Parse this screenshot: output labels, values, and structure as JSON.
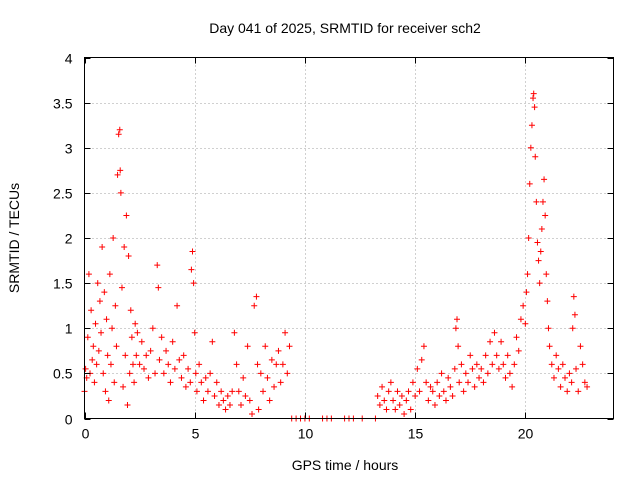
{
  "chart_data": {
    "type": "scatter",
    "title": "Day 041 of 2025, SRMTID for receiver sch2",
    "xlabel": "GPS time / hours",
    "ylabel": "SRMTID / TECUs",
    "xlim": [
      0,
      24
    ],
    "ylim": [
      0,
      4
    ],
    "xticks": [
      0,
      5,
      10,
      15,
      20
    ],
    "xtick_labels": [
      "0",
      "5",
      "10",
      "15",
      "20"
    ],
    "yticks": [
      0,
      0.5,
      1,
      1.5,
      2,
      2.5,
      3,
      3.5,
      4
    ],
    "ytick_labels": [
      "0",
      "0.5",
      "1",
      "1.5",
      "2",
      "2.5",
      "3",
      "3.5",
      "4"
    ],
    "grid": true,
    "marker": "+",
    "color": "#ff0000",
    "series": [
      {
        "name": "SRMTID",
        "points": [
          [
            0.0,
            0.3
          ],
          [
            0.05,
            0.55
          ],
          [
            0.1,
            0.45
          ],
          [
            0.15,
            0.9
          ],
          [
            0.2,
            1.6
          ],
          [
            0.25,
            0.5
          ],
          [
            0.3,
            1.2
          ],
          [
            0.35,
            0.65
          ],
          [
            0.4,
            0.8
          ],
          [
            0.45,
            0.4
          ],
          [
            0.5,
            1.05
          ],
          [
            0.55,
            0.6
          ],
          [
            0.6,
            1.5
          ],
          [
            0.65,
            0.75
          ],
          [
            0.7,
            1.3
          ],
          [
            0.75,
            0.95
          ],
          [
            0.8,
            1.9
          ],
          [
            0.85,
            0.5
          ],
          [
            0.9,
            1.4
          ],
          [
            0.95,
            0.3
          ],
          [
            1.0,
            1.1
          ],
          [
            1.05,
            0.7
          ],
          [
            1.1,
            0.2
          ],
          [
            1.15,
            1.6
          ],
          [
            1.2,
            0.6
          ],
          [
            1.25,
            1.0
          ],
          [
            1.3,
            2.0
          ],
          [
            1.35,
            0.4
          ],
          [
            1.4,
            1.25
          ],
          [
            1.45,
            0.8
          ],
          [
            1.5,
            2.7
          ],
          [
            1.55,
            3.15
          ],
          [
            1.6,
            3.2
          ],
          [
            1.62,
            2.75
          ],
          [
            1.65,
            2.5
          ],
          [
            1.7,
            1.45
          ],
          [
            1.75,
            0.35
          ],
          [
            1.8,
            1.9
          ],
          [
            1.85,
            0.7
          ],
          [
            1.9,
            2.25
          ],
          [
            1.95,
            0.15
          ],
          [
            2.0,
            1.8
          ],
          [
            2.05,
            0.5
          ],
          [
            2.1,
            1.2
          ],
          [
            2.15,
            0.9
          ],
          [
            2.2,
            0.6
          ],
          [
            2.25,
            0.4
          ],
          [
            2.3,
            1.05
          ],
          [
            2.35,
            0.7
          ],
          [
            2.4,
            0.95
          ],
          [
            2.5,
            0.6
          ],
          [
            2.6,
            0.85
          ],
          [
            2.7,
            0.55
          ],
          [
            2.8,
            0.7
          ],
          [
            2.9,
            0.45
          ],
          [
            3.0,
            0.75
          ],
          [
            3.1,
            1.0
          ],
          [
            3.2,
            0.5
          ],
          [
            3.3,
            1.7
          ],
          [
            3.35,
            1.45
          ],
          [
            3.4,
            0.65
          ],
          [
            3.5,
            0.9
          ],
          [
            3.6,
            0.5
          ],
          [
            3.7,
            0.75
          ],
          [
            3.8,
            0.6
          ],
          [
            3.9,
            0.4
          ],
          [
            4.0,
            0.85
          ],
          [
            4.1,
            0.55
          ],
          [
            4.2,
            1.25
          ],
          [
            4.3,
            0.65
          ],
          [
            4.4,
            0.45
          ],
          [
            4.5,
            0.7
          ],
          [
            4.6,
            0.35
          ],
          [
            4.7,
            0.55
          ],
          [
            4.8,
            0.4
          ],
          [
            4.85,
            1.65
          ],
          [
            4.9,
            1.85
          ],
          [
            4.95,
            1.5
          ],
          [
            5.0,
            0.95
          ],
          [
            5.05,
            0.5
          ],
          [
            5.1,
            0.3
          ],
          [
            5.2,
            0.6
          ],
          [
            5.3,
            0.4
          ],
          [
            5.4,
            0.2
          ],
          [
            5.5,
            0.45
          ],
          [
            5.6,
            0.3
          ],
          [
            5.7,
            0.5
          ],
          [
            5.8,
            0.85
          ],
          [
            5.9,
            0.25
          ],
          [
            6.0,
            0.4
          ],
          [
            6.1,
            0.15
          ],
          [
            6.2,
            0.3
          ],
          [
            6.3,
            0.2
          ],
          [
            6.4,
            0.1
          ],
          [
            6.5,
            0.25
          ],
          [
            6.6,
            0.15
          ],
          [
            6.7,
            0.3
          ],
          [
            6.8,
            0.95
          ],
          [
            6.9,
            0.6
          ],
          [
            7.0,
            0.3
          ],
          [
            7.1,
            0.15
          ],
          [
            7.2,
            0.45
          ],
          [
            7.3,
            0.25
          ],
          [
            7.4,
            0.8
          ],
          [
            7.5,
            0.2
          ],
          [
            7.6,
            0.05
          ],
          [
            7.7,
            1.25
          ],
          [
            7.8,
            1.35
          ],
          [
            7.85,
            0.6
          ],
          [
            7.9,
            0.1
          ],
          [
            8.0,
            0.5
          ],
          [
            8.1,
            0.3
          ],
          [
            8.2,
            0.8
          ],
          [
            8.3,
            0.45
          ],
          [
            8.4,
            0.2
          ],
          [
            8.5,
            0.65
          ],
          [
            8.6,
            0.35
          ],
          [
            8.7,
            0.6
          ],
          [
            8.8,
            0.75
          ],
          [
            8.9,
            0.4
          ],
          [
            9.0,
            0.6
          ],
          [
            9.1,
            0.95
          ],
          [
            9.2,
            0.5
          ],
          [
            9.3,
            0.8
          ],
          [
            9.4,
            0.0
          ],
          [
            9.6,
            0.0
          ],
          [
            9.8,
            0.0
          ],
          [
            10.0,
            0.0
          ],
          [
            10.2,
            0.0
          ],
          [
            10.8,
            0.0
          ],
          [
            11.0,
            0.0
          ],
          [
            11.2,
            0.0
          ],
          [
            11.8,
            0.0
          ],
          [
            12.0,
            0.0
          ],
          [
            12.2,
            0.0
          ],
          [
            12.6,
            0.0
          ],
          [
            13.2,
            0.0
          ],
          [
            13.3,
            0.25
          ],
          [
            13.4,
            0.15
          ],
          [
            13.5,
            0.35
          ],
          [
            13.6,
            0.2
          ],
          [
            13.7,
            0.1
          ],
          [
            13.8,
            0.3
          ],
          [
            13.9,
            0.4
          ],
          [
            14.0,
            0.2
          ],
          [
            14.1,
            0.1
          ],
          [
            14.2,
            0.3
          ],
          [
            14.3,
            0.15
          ],
          [
            14.4,
            0.25
          ],
          [
            14.5,
            0.05
          ],
          [
            14.6,
            0.2
          ],
          [
            14.7,
            0.3
          ],
          [
            14.8,
            0.1
          ],
          [
            14.9,
            0.4
          ],
          [
            15.0,
            0.25
          ],
          [
            15.1,
            0.55
          ],
          [
            15.2,
            0.3
          ],
          [
            15.3,
            0.65
          ],
          [
            15.4,
            0.8
          ],
          [
            15.5,
            0.4
          ],
          [
            15.6,
            0.2
          ],
          [
            15.7,
            0.35
          ],
          [
            15.8,
            0.3
          ],
          [
            15.9,
            0.15
          ],
          [
            16.0,
            0.4
          ],
          [
            16.1,
            0.25
          ],
          [
            16.2,
            0.5
          ],
          [
            16.3,
            0.3
          ],
          [
            16.4,
            0.2
          ],
          [
            16.5,
            0.45
          ],
          [
            16.6,
            0.35
          ],
          [
            16.7,
            0.25
          ],
          [
            16.8,
            0.55
          ],
          [
            16.85,
            1.0
          ],
          [
            16.9,
            1.1
          ],
          [
            16.95,
            0.8
          ],
          [
            17.0,
            0.4
          ],
          [
            17.1,
            0.6
          ],
          [
            17.2,
            0.3
          ],
          [
            17.3,
            0.5
          ],
          [
            17.4,
            0.4
          ],
          [
            17.5,
            0.7
          ],
          [
            17.6,
            0.55
          ],
          [
            17.7,
            0.35
          ],
          [
            17.8,
            0.6
          ],
          [
            17.9,
            0.45
          ],
          [
            18.0,
            0.55
          ],
          [
            18.1,
            0.4
          ],
          [
            18.2,
            0.7
          ],
          [
            18.3,
            0.5
          ],
          [
            18.4,
            0.85
          ],
          [
            18.5,
            0.6
          ],
          [
            18.6,
            0.95
          ],
          [
            18.7,
            0.7
          ],
          [
            18.8,
            0.55
          ],
          [
            18.9,
            0.85
          ],
          [
            19.0,
            0.6
          ],
          [
            19.1,
            0.45
          ],
          [
            19.2,
            0.7
          ],
          [
            19.3,
            0.5
          ],
          [
            19.4,
            0.35
          ],
          [
            19.5,
            0.6
          ],
          [
            19.6,
            0.9
          ],
          [
            19.7,
            0.75
          ],
          [
            19.8,
            1.1
          ],
          [
            19.9,
            1.25
          ],
          [
            20.0,
            1.05
          ],
          [
            20.05,
            1.4
          ],
          [
            20.1,
            1.6
          ],
          [
            20.15,
            2.0
          ],
          [
            20.2,
            2.6
          ],
          [
            20.25,
            3.0
          ],
          [
            20.3,
            3.25
          ],
          [
            20.35,
            3.55
          ],
          [
            20.38,
            3.6
          ],
          [
            20.42,
            3.45
          ],
          [
            20.45,
            2.9
          ],
          [
            20.5,
            2.4
          ],
          [
            20.55,
            1.95
          ],
          [
            20.6,
            1.75
          ],
          [
            20.65,
            1.5
          ],
          [
            20.7,
            1.85
          ],
          [
            20.75,
            2.1
          ],
          [
            20.8,
            2.4
          ],
          [
            20.85,
            2.65
          ],
          [
            20.9,
            2.25
          ],
          [
            20.95,
            1.6
          ],
          [
            21.0,
            1.3
          ],
          [
            21.05,
            1.0
          ],
          [
            21.1,
            0.8
          ],
          [
            21.2,
            0.6
          ],
          [
            21.3,
            0.45
          ],
          [
            21.4,
            0.7
          ],
          [
            21.5,
            0.55
          ],
          [
            21.6,
            0.35
          ],
          [
            21.7,
            0.6
          ],
          [
            21.8,
            0.45
          ],
          [
            21.9,
            0.3
          ],
          [
            22.0,
            0.5
          ],
          [
            22.1,
            0.4
          ],
          [
            22.15,
            1.0
          ],
          [
            22.2,
            1.35
          ],
          [
            22.25,
            1.15
          ],
          [
            22.3,
            0.55
          ],
          [
            22.4,
            0.3
          ],
          [
            22.5,
            0.8
          ],
          [
            22.6,
            0.6
          ],
          [
            22.7,
            0.4
          ],
          [
            22.8,
            0.35
          ]
        ]
      }
    ]
  }
}
